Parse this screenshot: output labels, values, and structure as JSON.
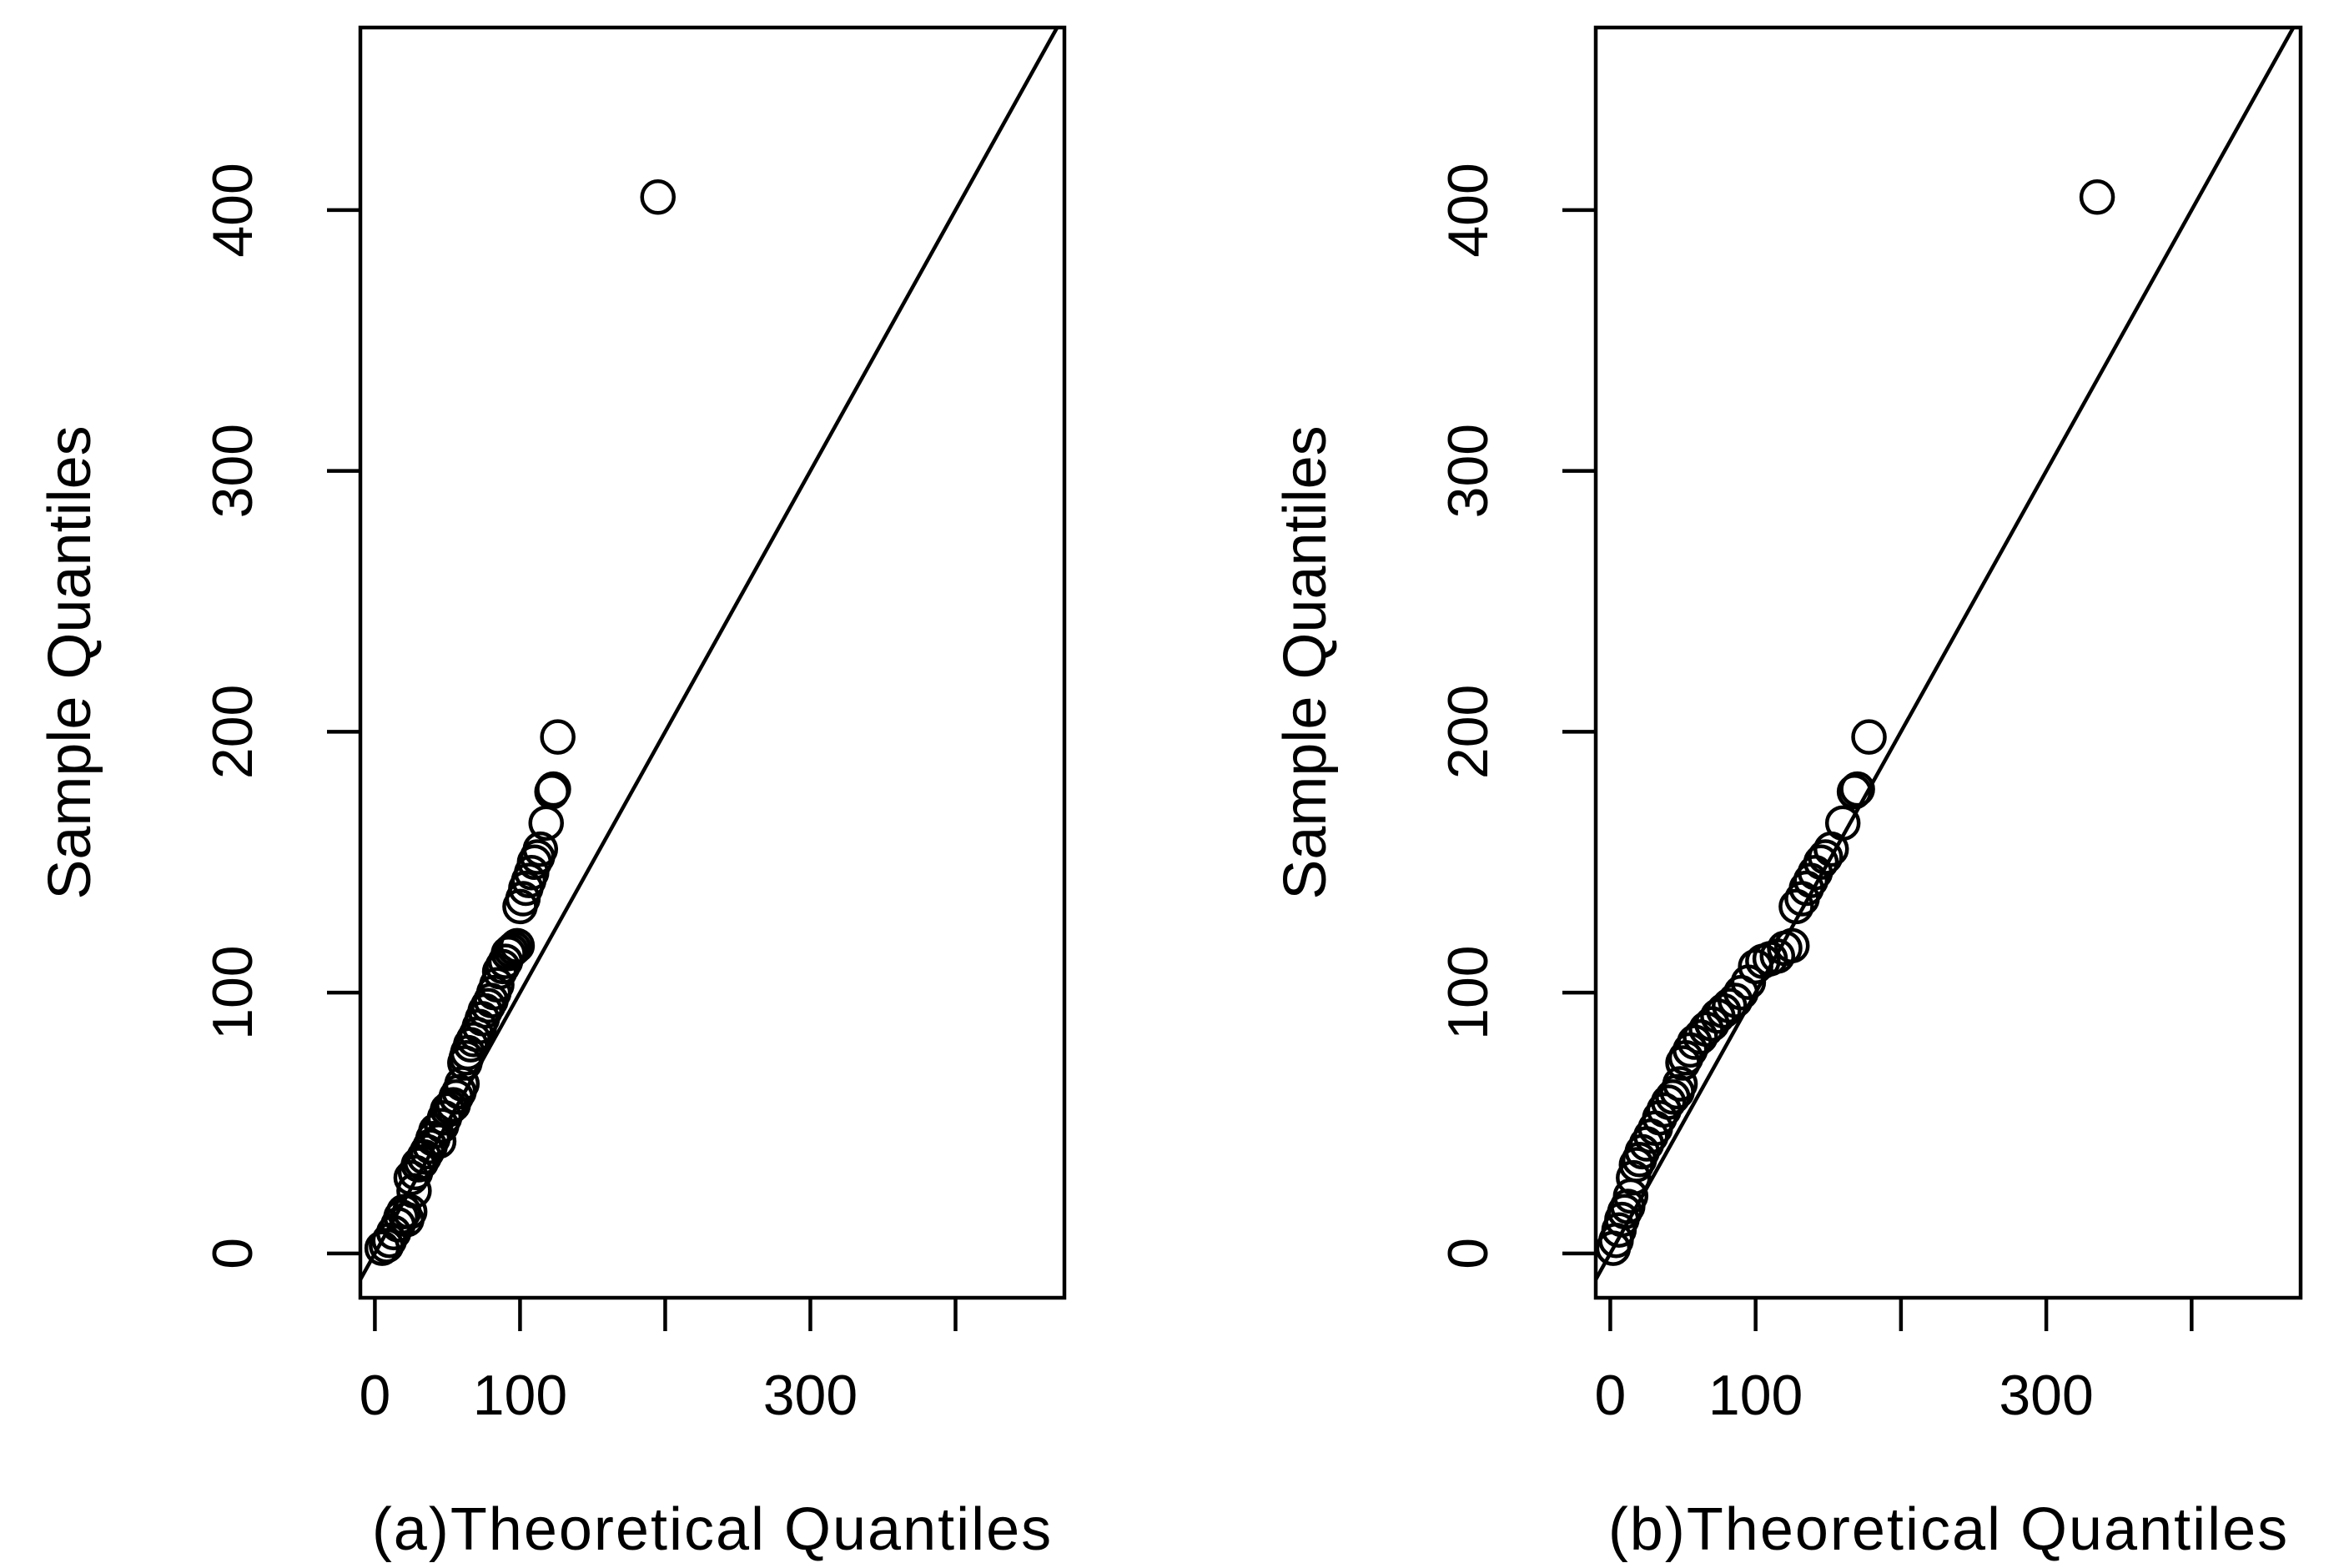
{
  "chart_data": [
    {
      "type": "scatter",
      "panel": "a",
      "xlabel": "(a)Theoretical Quantiles",
      "ylabel": "Sample Quantiles",
      "xlim": [
        -10,
        475
      ],
      "ylim": [
        -17,
        470
      ],
      "x_ticks": [
        0,
        100,
        200,
        300,
        400
      ],
      "x_tick_labels": [
        "0",
        "100",
        "",
        "300",
        ""
      ],
      "y_ticks": [
        0,
        100,
        200,
        300,
        400
      ],
      "y_tick_labels": [
        "0",
        "100",
        "200",
        "300",
        "400"
      ],
      "reference_line": {
        "slope": 1,
        "intercept": 0
      },
      "grid": false,
      "points": [
        [
          5,
          2
        ],
        [
          8,
          3
        ],
        [
          10,
          5
        ],
        [
          13,
          8
        ],
        [
          16,
          11
        ],
        [
          18,
          14
        ],
        [
          20,
          16
        ],
        [
          22,
          13
        ],
        [
          24,
          16
        ],
        [
          25,
          29
        ],
        [
          27,
          24
        ],
        [
          28,
          31
        ],
        [
          30,
          34
        ],
        [
          32,
          35
        ],
        [
          34,
          37
        ],
        [
          36,
          39
        ],
        [
          38,
          41
        ],
        [
          40,
          44
        ],
        [
          42,
          47
        ],
        [
          44,
          43
        ],
        [
          46,
          49
        ],
        [
          48,
          52
        ],
        [
          50,
          55
        ],
        [
          52,
          56
        ],
        [
          54,
          57
        ],
        [
          56,
          60
        ],
        [
          58,
          62
        ],
        [
          60,
          65
        ],
        [
          62,
          73
        ],
        [
          63,
          75
        ],
        [
          64,
          77
        ],
        [
          66,
          80
        ],
        [
          68,
          82
        ],
        [
          70,
          84
        ],
        [
          72,
          87
        ],
        [
          74,
          90
        ],
        [
          76,
          93
        ],
        [
          78,
          95
        ],
        [
          80,
          97
        ],
        [
          82,
          100
        ],
        [
          84,
          103
        ],
        [
          86,
          108
        ],
        [
          88,
          110
        ],
        [
          90,
          112
        ],
        [
          92,
          115
        ],
        [
          94,
          116
        ],
        [
          96,
          117
        ],
        [
          98,
          118
        ],
        [
          100,
          133
        ],
        [
          102,
          136
        ],
        [
          104,
          140
        ],
        [
          106,
          143
        ],
        [
          108,
          146
        ],
        [
          110,
          150
        ],
        [
          112,
          152
        ],
        [
          114,
          155
        ],
        [
          118,
          165
        ],
        [
          122,
          177
        ],
        [
          123,
          178
        ],
        [
          126,
          198
        ],
        [
          195,
          405
        ]
      ]
    },
    {
      "type": "scatter",
      "panel": "b",
      "xlabel": "(b)Theoretical Quantiles",
      "ylabel": "Sample Quantiles",
      "xlim": [
        -10,
        475
      ],
      "ylim": [
        -17,
        470
      ],
      "x_ticks": [
        0,
        100,
        200,
        300,
        400
      ],
      "x_tick_labels": [
        "0",
        "100",
        "",
        "300",
        ""
      ],
      "y_ticks": [
        0,
        100,
        200,
        300,
        400
      ],
      "y_tick_labels": [
        "0",
        "100",
        "200",
        "300",
        "400"
      ],
      "reference_line": {
        "slope": 1,
        "intercept": 0
      },
      "grid": false,
      "points": [
        [
          2,
          2
        ],
        [
          4,
          5
        ],
        [
          6,
          9
        ],
        [
          8,
          13
        ],
        [
          10,
          16
        ],
        [
          12,
          18
        ],
        [
          14,
          22
        ],
        [
          16,
          29
        ],
        [
          18,
          34
        ],
        [
          20,
          36
        ],
        [
          22,
          39
        ],
        [
          25,
          42
        ],
        [
          28,
          45
        ],
        [
          31,
          48
        ],
        [
          34,
          52
        ],
        [
          37,
          55
        ],
        [
          40,
          58
        ],
        [
          43,
          60
        ],
        [
          46,
          62
        ],
        [
          48,
          65
        ],
        [
          50,
          73
        ],
        [
          52,
          75
        ],
        [
          55,
          78
        ],
        [
          58,
          81
        ],
        [
          62,
          83
        ],
        [
          66,
          86
        ],
        [
          70,
          88
        ],
        [
          74,
          91
        ],
        [
          78,
          93
        ],
        [
          82,
          95
        ],
        [
          86,
          97
        ],
        [
          90,
          100
        ],
        [
          95,
          104
        ],
        [
          100,
          110
        ],
        [
          105,
          112
        ],
        [
          110,
          113
        ],
        [
          115,
          114
        ],
        [
          120,
          117
        ],
        [
          125,
          118
        ],
        [
          128,
          133
        ],
        [
          132,
          136
        ],
        [
          135,
          140
        ],
        [
          138,
          143
        ],
        [
          141,
          146
        ],
        [
          145,
          150
        ],
        [
          148,
          152
        ],
        [
          152,
          155
        ],
        [
          160,
          165
        ],
        [
          168,
          177
        ],
        [
          170,
          178
        ],
        [
          178,
          198
        ],
        [
          335,
          405
        ]
      ]
    }
  ]
}
